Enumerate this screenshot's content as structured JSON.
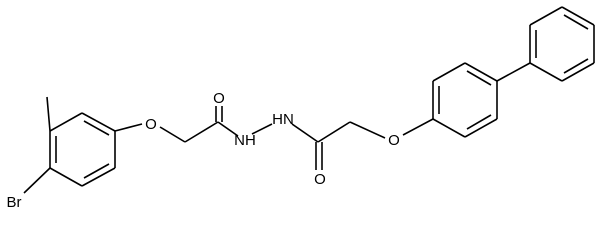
{
  "atoms": [
    "Br",
    "O",
    "O",
    "NH",
    "HN",
    "O",
    "O"
  ]
}
